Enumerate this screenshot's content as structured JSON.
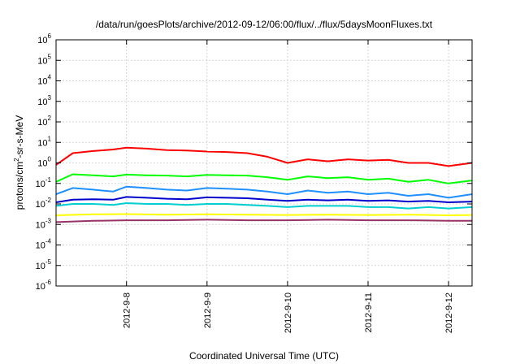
{
  "chart_data": {
    "type": "line",
    "title": "/data/run/goesPlots/archive/2012-09-12/06:00/flux/../flux/5daysMoonFluxes.txt",
    "xlabel": "Coordinated Universal Time (UTC)",
    "ylabel_base": "protons/cm",
    "ylabel_sup": "2",
    "ylabel_rest": "-sr-s-MeV",
    "y_scale": "log",
    "ylim": [
      1e-06,
      1000000.0
    ],
    "y_ticks": [
      {
        "base": "10",
        "exp": "6",
        "value": 1000000.0
      },
      {
        "base": "10",
        "exp": "5",
        "value": 100000.0
      },
      {
        "base": "10",
        "exp": "4",
        "value": 10000.0
      },
      {
        "base": "10",
        "exp": "3",
        "value": 1000.0
      },
      {
        "base": "10",
        "exp": "2",
        "value": 100.0
      },
      {
        "base": "10",
        "exp": "1",
        "value": 10.0
      },
      {
        "base": "10",
        "exp": "0",
        "value": 1.0
      },
      {
        "base": "10",
        "exp": "-1",
        "value": 0.1
      },
      {
        "base": "10",
        "exp": "-2",
        "value": 0.01
      },
      {
        "base": "10",
        "exp": "-3",
        "value": 0.001
      },
      {
        "base": "10",
        "exp": "-4",
        "value": 0.0001
      },
      {
        "base": "10",
        "exp": "-5",
        "value": 1e-05
      },
      {
        "base": "10",
        "exp": "-6",
        "value": 1e-06
      }
    ],
    "xlim": [
      "2012-09-07T03:00",
      "2012-09-12T07:00"
    ],
    "x_ticks": [
      {
        "label": "2012-9-8",
        "value": "2012-09-08T00:00"
      },
      {
        "label": "2012-9-9",
        "value": "2012-09-09T00:00"
      },
      {
        "label": "2012-9-10",
        "value": "2012-09-10T00:00"
      },
      {
        "label": "2012-9-11",
        "value": "2012-09-11T00:00"
      },
      {
        "label": "2012-9-12",
        "value": "2012-09-12T00:00"
      }
    ],
    "grid": true,
    "series": [
      {
        "color": "#ff0000",
        "x": [
          "2012-09-07T03:00",
          "2012-09-07T08:00",
          "2012-09-07T14:00",
          "2012-09-07T20:00",
          "2012-09-08T00:00",
          "2012-09-08T06:00",
          "2012-09-08T12:00",
          "2012-09-08T18:00",
          "2012-09-09T00:00",
          "2012-09-09T06:00",
          "2012-09-09T12:00",
          "2012-09-09T18:00",
          "2012-09-10T00:00",
          "2012-09-10T06:00",
          "2012-09-10T12:00",
          "2012-09-10T18:00",
          "2012-09-11T00:00",
          "2012-09-11T06:00",
          "2012-09-11T12:00",
          "2012-09-11T18:00",
          "2012-09-12T00:00",
          "2012-09-12T07:00"
        ],
        "values": [
          0.8,
          3.0,
          3.8,
          4.5,
          5.5,
          5.0,
          4.2,
          4.0,
          3.6,
          3.4,
          3.0,
          2.0,
          1.0,
          1.5,
          1.2,
          1.5,
          1.3,
          1.4,
          1.0,
          1.0,
          0.7,
          1.0
        ]
      },
      {
        "color": "#00ff00",
        "x": [
          "2012-09-07T03:00",
          "2012-09-07T08:00",
          "2012-09-07T14:00",
          "2012-09-07T20:00",
          "2012-09-08T00:00",
          "2012-09-08T06:00",
          "2012-09-08T12:00",
          "2012-09-08T18:00",
          "2012-09-09T00:00",
          "2012-09-09T06:00",
          "2012-09-09T12:00",
          "2012-09-09T18:00",
          "2012-09-10T00:00",
          "2012-09-10T06:00",
          "2012-09-10T12:00",
          "2012-09-10T18:00",
          "2012-09-11T00:00",
          "2012-09-11T06:00",
          "2012-09-11T12:00",
          "2012-09-11T18:00",
          "2012-09-12T00:00",
          "2012-09-12T07:00"
        ],
        "values": [
          0.12,
          0.28,
          0.25,
          0.22,
          0.27,
          0.25,
          0.24,
          0.22,
          0.26,
          0.25,
          0.24,
          0.2,
          0.15,
          0.22,
          0.18,
          0.2,
          0.15,
          0.17,
          0.12,
          0.15,
          0.1,
          0.14
        ]
      },
      {
        "color": "#1e90ff",
        "x": [
          "2012-09-07T03:00",
          "2012-09-07T08:00",
          "2012-09-07T14:00",
          "2012-09-07T20:00",
          "2012-09-08T00:00",
          "2012-09-08T06:00",
          "2012-09-08T12:00",
          "2012-09-08T18:00",
          "2012-09-09T00:00",
          "2012-09-09T06:00",
          "2012-09-09T12:00",
          "2012-09-09T18:00",
          "2012-09-10T00:00",
          "2012-09-10T06:00",
          "2012-09-10T12:00",
          "2012-09-10T18:00",
          "2012-09-11T00:00",
          "2012-09-11T06:00",
          "2012-09-11T12:00",
          "2012-09-11T18:00",
          "2012-09-12T00:00",
          "2012-09-12T07:00"
        ],
        "values": [
          0.03,
          0.06,
          0.05,
          0.04,
          0.07,
          0.06,
          0.05,
          0.045,
          0.06,
          0.055,
          0.05,
          0.04,
          0.03,
          0.045,
          0.035,
          0.04,
          0.03,
          0.035,
          0.025,
          0.03,
          0.02,
          0.03
        ]
      },
      {
        "color": "#0000cd",
        "x": [
          "2012-09-07T03:00",
          "2012-09-07T08:00",
          "2012-09-07T14:00",
          "2012-09-07T20:00",
          "2012-09-08T00:00",
          "2012-09-08T06:00",
          "2012-09-08T12:00",
          "2012-09-08T18:00",
          "2012-09-09T00:00",
          "2012-09-09T06:00",
          "2012-09-09T12:00",
          "2012-09-09T18:00",
          "2012-09-10T00:00",
          "2012-09-10T06:00",
          "2012-09-10T12:00",
          "2012-09-10T18:00",
          "2012-09-11T00:00",
          "2012-09-11T06:00",
          "2012-09-11T12:00",
          "2012-09-11T18:00",
          "2012-09-12T00:00",
          "2012-09-12T07:00"
        ],
        "values": [
          0.012,
          0.016,
          0.017,
          0.016,
          0.022,
          0.02,
          0.018,
          0.017,
          0.021,
          0.02,
          0.019,
          0.016,
          0.014,
          0.016,
          0.015,
          0.016,
          0.014,
          0.015,
          0.013,
          0.014,
          0.012,
          0.013
        ]
      },
      {
        "color": "#00ced1",
        "x": [
          "2012-09-07T03:00",
          "2012-09-07T08:00",
          "2012-09-07T14:00",
          "2012-09-07T20:00",
          "2012-09-08T00:00",
          "2012-09-08T06:00",
          "2012-09-08T12:00",
          "2012-09-08T18:00",
          "2012-09-09T00:00",
          "2012-09-09T06:00",
          "2012-09-09T12:00",
          "2012-09-09T18:00",
          "2012-09-10T00:00",
          "2012-09-10T06:00",
          "2012-09-10T12:00",
          "2012-09-10T18:00",
          "2012-09-11T00:00",
          "2012-09-11T06:00",
          "2012-09-11T12:00",
          "2012-09-11T18:00",
          "2012-09-12T00:00",
          "2012-09-12T07:00"
        ],
        "values": [
          0.008,
          0.01,
          0.01,
          0.009,
          0.011,
          0.01,
          0.01,
          0.009,
          0.01,
          0.01,
          0.009,
          0.008,
          0.007,
          0.008,
          0.008,
          0.008,
          0.007,
          0.007,
          0.006,
          0.007,
          0.006,
          0.007
        ]
      },
      {
        "color": "#ffff00",
        "x": [
          "2012-09-07T03:00",
          "2012-09-07T14:00",
          "2012-09-08T00:00",
          "2012-09-08T12:00",
          "2012-09-09T00:00",
          "2012-09-09T12:00",
          "2012-09-10T00:00",
          "2012-09-10T12:00",
          "2012-09-11T00:00",
          "2012-09-11T12:00",
          "2012-09-12T00:00",
          "2012-09-12T07:00"
        ],
        "values": [
          0.0028,
          0.0031,
          0.0032,
          0.003,
          0.0031,
          0.003,
          0.0029,
          0.003,
          0.0029,
          0.003,
          0.0028,
          0.0029
        ]
      },
      {
        "color": "#993366",
        "x": [
          "2012-09-07T03:00",
          "2012-09-07T14:00",
          "2012-09-08T00:00",
          "2012-09-08T12:00",
          "2012-09-09T00:00",
          "2012-09-09T12:00",
          "2012-09-10T00:00",
          "2012-09-10T12:00",
          "2012-09-11T00:00",
          "2012-09-11T12:00",
          "2012-09-12T00:00",
          "2012-09-12T07:00"
        ],
        "values": [
          0.0013,
          0.0015,
          0.0016,
          0.0016,
          0.0017,
          0.0016,
          0.0016,
          0.0017,
          0.0016,
          0.0016,
          0.0015,
          0.0015
        ]
      }
    ]
  }
}
